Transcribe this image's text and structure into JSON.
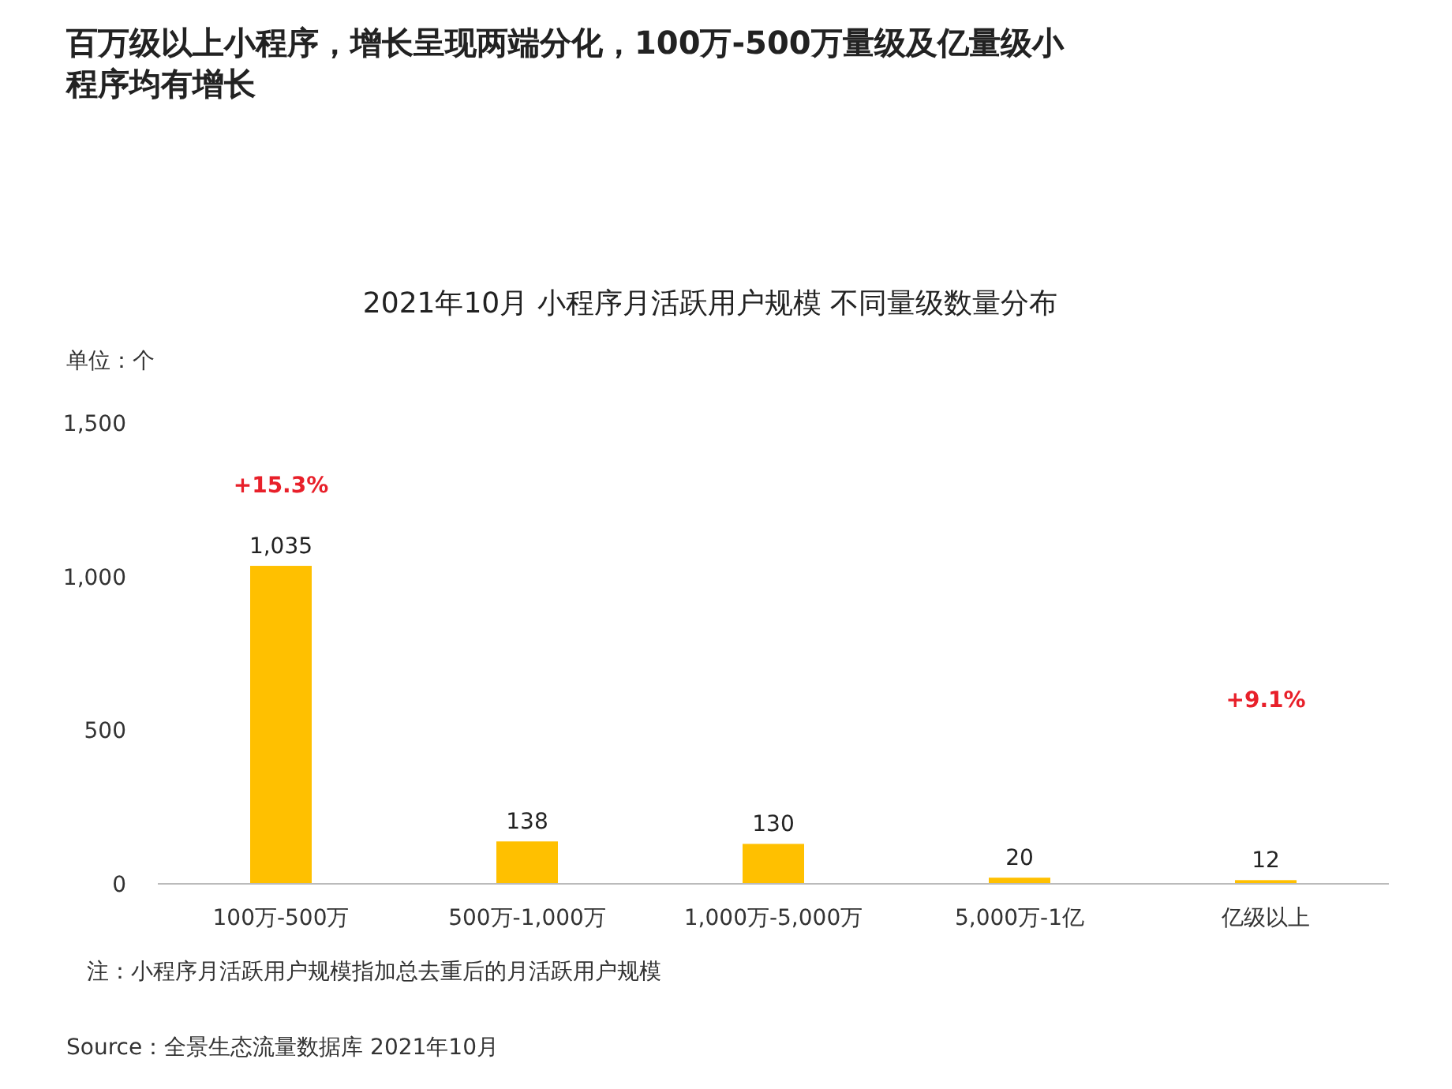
{
  "chart_data": {
    "type": "bar",
    "title": "百万级以上小程序，增长呈现两端分化，100万-500万量级及亿量级小程序均有增长",
    "subtitle": "2021年10月 小程序月活跃用户规模 不同量级数量分布",
    "ylabel": "单位：个",
    "categories": [
      "100万-500万",
      "500万-1,000万",
      "1,000万-5,000万",
      "5,000万-1亿",
      "亿级以上"
    ],
    "values": [
      1035,
      138,
      130,
      20,
      12
    ],
    "color": "#ffc000",
    "value_labels": [
      "1,035",
      "138",
      "130",
      "20",
      "12"
    ],
    "ylim": [
      0,
      1500
    ],
    "yticks": [
      0,
      {
        "value": 500,
        "label": "500"
      },
      {
        "value": 1000,
        "label": "1,000"
      },
      {
        "value": 1500,
        "label": "1,500"
      }
    ],
    "grid": false,
    "annotations": [
      "+15.3%",
      "+9.1%",
      "注：小程序月活跃用户规模指加总去重后的月活跃用户规模",
      "Source：全景生态流量数据库 2021年10月"
    ]
  }
}
